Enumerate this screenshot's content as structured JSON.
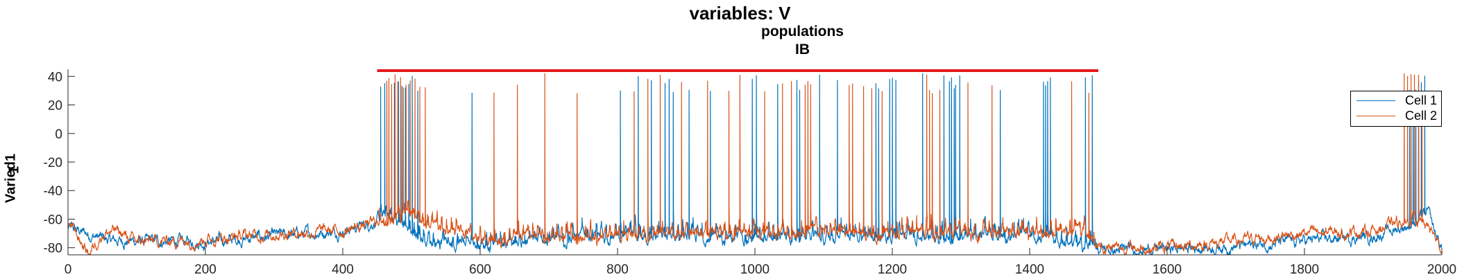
{
  "chart_data": {
    "type": "line",
    "title": "variables: V",
    "subtitle": [
      "populations",
      "IB"
    ],
    "ylabel": [
      "Varied1",
      "1"
    ],
    "xlabel": "",
    "xlim": [
      0,
      2000
    ],
    "ylim": [
      -85,
      45
    ],
    "xticks": [
      "0",
      "200",
      "400",
      "600",
      "800",
      "1000",
      "1200",
      "1400",
      "1600",
      "1800",
      "2000"
    ],
    "yticks": [
      "40",
      "20",
      "0",
      "-20",
      "-40",
      "-60",
      "-80"
    ],
    "grid": false,
    "legend_position": "top-right",
    "stim_bar": {
      "x_start": 450,
      "x_end": 1500,
      "y": 44,
      "color": "#e41a1c"
    },
    "series": [
      {
        "name": "Cell 1",
        "color": "#0072bd",
        "baseline": [
          [
            0,
            -66
          ],
          [
            60,
            -75
          ],
          [
            200,
            -76
          ],
          [
            300,
            -72
          ],
          [
            400,
            -68
          ],
          [
            440,
            -63
          ],
          [
            460,
            -58
          ],
          [
            480,
            -62
          ],
          [
            520,
            -75
          ],
          [
            600,
            -78
          ],
          [
            800,
            -72
          ],
          [
            1000,
            -74
          ],
          [
            1200,
            -72
          ],
          [
            1400,
            -72
          ],
          [
            1500,
            -80
          ],
          [
            1520,
            -82
          ],
          [
            1700,
            -79
          ],
          [
            1800,
            -75
          ],
          [
            1900,
            -72
          ],
          [
            1960,
            -63
          ],
          [
            1980,
            -55
          ],
          [
            1990,
            -70
          ],
          [
            2000,
            -80
          ]
        ],
        "spikes": [
          455,
          461,
          475,
          481,
          486,
          491,
          496,
          501,
          509,
          588,
          804,
          830,
          849,
          869,
          875,
          881,
          904,
          935,
          996,
          1002,
          1033,
          1061,
          1065,
          1094,
          1120,
          1176,
          1180,
          1196,
          1200,
          1205,
          1244,
          1275,
          1283,
          1286,
          1290,
          1292,
          1298,
          1357,
          1420,
          1423,
          1426,
          1430,
          1481,
          1491,
          1953,
          1958,
          1962,
          1966,
          1970,
          1975
        ]
      },
      {
        "name": "Cell 2",
        "color": "#d95319",
        "baseline": [
          [
            0,
            -62
          ],
          [
            30,
            -84
          ],
          [
            50,
            -70
          ],
          [
            70,
            -68
          ],
          [
            100,
            -76
          ],
          [
            200,
            -74
          ],
          [
            300,
            -70
          ],
          [
            400,
            -68
          ],
          [
            450,
            -62
          ],
          [
            500,
            -55
          ],
          [
            520,
            -65
          ],
          [
            600,
            -75
          ],
          [
            800,
            -72
          ],
          [
            1000,
            -70
          ],
          [
            1200,
            -70
          ],
          [
            1400,
            -70
          ],
          [
            1480,
            -68
          ],
          [
            1500,
            -80
          ],
          [
            1600,
            -80
          ],
          [
            1800,
            -70
          ],
          [
            1900,
            -68
          ],
          [
            1940,
            -62
          ],
          [
            1960,
            -58
          ],
          [
            1985,
            -68
          ],
          [
            2000,
            -82
          ]
        ],
        "spikes": [
          464,
          467,
          471,
          476,
          480,
          484,
          488,
          492,
          498,
          505,
          512,
          520,
          620,
          654,
          694,
          741,
          824,
          844,
          862,
          893,
          931,
          962,
          978,
          1014,
          1040,
          1053,
          1073,
          1077,
          1081,
          1137,
          1142,
          1158,
          1170,
          1185,
          1250,
          1254,
          1258,
          1269,
          1310,
          1345,
          1461,
          1486,
          1945,
          1950,
          1955,
          1960,
          1966,
          1971
        ]
      }
    ]
  }
}
